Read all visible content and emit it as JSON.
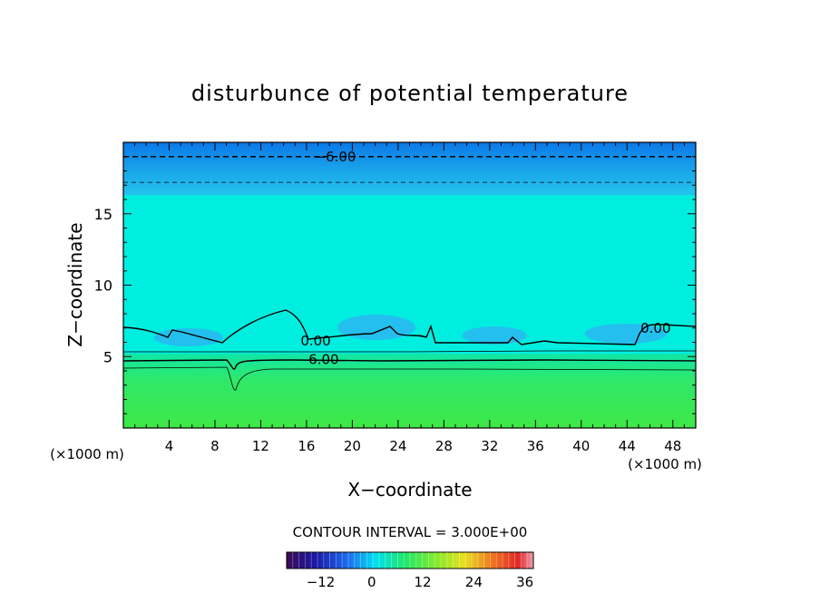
{
  "chart_data": {
    "type": "heatmap",
    "title": "disturbunce of potential temperature",
    "xlabel": "X−coordinate",
    "ylabel": "Z−coordinate",
    "x_unit": "(×1000 m)",
    "x_unit_right": "(×1000 m)",
    "xlim": [
      0,
      50
    ],
    "ylim": [
      0,
      20
    ],
    "x_ticks": [
      4,
      8,
      12,
      16,
      20,
      24,
      28,
      32,
      36,
      40,
      44,
      48
    ],
    "y_ticks": [
      5,
      10,
      15
    ],
    "contour_interval_label": "CONTOUR INTERVAL = 3.000E+00",
    "contour_labels": [
      {
        "text": "−6.00",
        "x": 18.5,
        "z": 19.0
      },
      {
        "text": "0.00",
        "x": 16.8,
        "z": 6.1
      },
      {
        "text": "6.00",
        "x": 17.5,
        "z": 4.8
      },
      {
        "text": "0.00",
        "x": 46.5,
        "z": 7.0
      }
    ],
    "fields": [
      {
        "name": "upper-negative-layer",
        "z_range": [
          16.3,
          20
        ],
        "value": -4.5,
        "color": "#1a9ee0"
      },
      {
        "name": "mid-neutral-layer",
        "z_range": [
          6.5,
          16.3
        ],
        "value": 0,
        "color": "#00eee0"
      },
      {
        "name": "low-positive-layer",
        "z_range": [
          0,
          5.2
        ],
        "value": 6,
        "color": "#39e84f"
      }
    ],
    "colorbar": {
      "range": [
        -20,
        38
      ],
      "ticks": [
        "−12",
        "0",
        "12",
        "24",
        "36"
      ],
      "tick_values": [
        -12,
        0,
        12,
        24,
        36
      ]
    }
  }
}
